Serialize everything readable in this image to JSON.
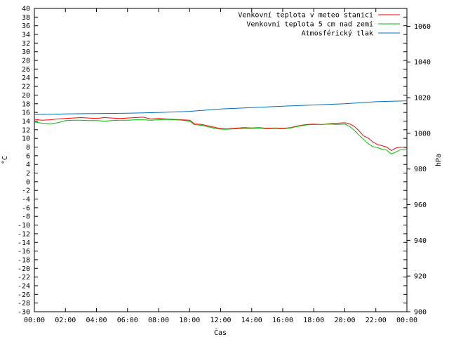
{
  "chart_data": {
    "type": "line",
    "xlabel": "Čas",
    "ylabel_left": "°C",
    "ylabel_right": "hPa",
    "x_ticks": [
      "00:00",
      "02:00",
      "04:00",
      "06:00",
      "08:00",
      "10:00",
      "12:00",
      "14:00",
      "16:00",
      "18:00",
      "20:00",
      "22:00",
      "00:00"
    ],
    "x_range": [
      0,
      24
    ],
    "y_left_range": [
      -30,
      40
    ],
    "y_left_ticks": [
      "40",
      "38",
      "36",
      "34",
      "32",
      "30",
      "28",
      "26",
      "24",
      "22",
      "20",
      "18",
      "16",
      "14",
      "12",
      "10",
      "8",
      "6",
      "4",
      "2",
      "0",
      "-2",
      "-4",
      "-6",
      "-8",
      "-10",
      "-12",
      "-14",
      "-16",
      "-18",
      "-20",
      "-22",
      "-24",
      "-26",
      "-28",
      "-30"
    ],
    "y_right_range": [
      900,
      1070
    ],
    "y_right_ticks": [
      "1060",
      "1040",
      "1020",
      "1000",
      "980",
      "960",
      "940",
      "920",
      "900"
    ],
    "grid": false,
    "legend_position": "top-right",
    "series": [
      {
        "name": "Venkovní teplota v meteo stanici",
        "color": "#ff0000",
        "axis": "left",
        "points": [
          [
            0,
            14.4
          ],
          [
            0.5,
            14.2
          ],
          [
            1,
            14.3
          ],
          [
            1.5,
            14.5
          ],
          [
            2,
            14.6
          ],
          [
            2.5,
            14.7
          ],
          [
            3,
            14.8
          ],
          [
            3.5,
            14.7
          ],
          [
            4,
            14.6
          ],
          [
            4.5,
            14.8
          ],
          [
            5,
            14.7
          ],
          [
            5.5,
            14.6
          ],
          [
            6,
            14.7
          ],
          [
            6.5,
            14.8
          ],
          [
            7,
            14.9
          ],
          [
            7.5,
            14.5
          ],
          [
            8,
            14.6
          ],
          [
            8.5,
            14.5
          ],
          [
            9,
            14.4
          ],
          [
            9.5,
            14.3
          ],
          [
            10,
            14.2
          ],
          [
            10.3,
            13.4
          ],
          [
            10.8,
            13.2
          ],
          [
            11.3,
            12.8
          ],
          [
            11.8,
            12.4
          ],
          [
            12.3,
            12.2
          ],
          [
            12.8,
            12.3
          ],
          [
            13.5,
            12.5
          ],
          [
            14,
            12.4
          ],
          [
            14.5,
            12.5
          ],
          [
            15,
            12.3
          ],
          [
            15.5,
            12.4
          ],
          [
            16,
            12.3
          ],
          [
            16.5,
            12.5
          ],
          [
            17,
            12.9
          ],
          [
            17.5,
            13.2
          ],
          [
            18,
            13.3
          ],
          [
            18.5,
            13.2
          ],
          [
            19,
            13.4
          ],
          [
            19.5,
            13.5
          ],
          [
            20,
            13.6
          ],
          [
            20.3,
            13.4
          ],
          [
            20.6,
            12.8
          ],
          [
            20.9,
            11.8
          ],
          [
            21.2,
            10.6
          ],
          [
            21.5,
            10.1
          ],
          [
            21.8,
            9.2
          ],
          [
            22.1,
            8.6
          ],
          [
            22.4,
            8.3
          ],
          [
            22.7,
            8.0
          ],
          [
            23,
            7.2
          ],
          [
            23.3,
            7.8
          ],
          [
            23.6,
            8.0
          ],
          [
            24,
            7.9
          ]
        ]
      },
      {
        "name": "Venkovní teplota 5 cm nad zemí",
        "color": "#00c000",
        "axis": "left",
        "points": [
          [
            0,
            13.8
          ],
          [
            0.5,
            13.5
          ],
          [
            1,
            13.4
          ],
          [
            1.5,
            13.6
          ],
          [
            2,
            14.1
          ],
          [
            2.5,
            14.2
          ],
          [
            3,
            14.2
          ],
          [
            3.5,
            14.1
          ],
          [
            4,
            14.1
          ],
          [
            4.5,
            14.0
          ],
          [
            5,
            14.1
          ],
          [
            5.5,
            14.2
          ],
          [
            6,
            14.2
          ],
          [
            6.5,
            14.3
          ],
          [
            7,
            14.3
          ],
          [
            7.5,
            14.2
          ],
          [
            8,
            14.3
          ],
          [
            8.5,
            14.4
          ],
          [
            9,
            14.3
          ],
          [
            9.5,
            14.2
          ],
          [
            10,
            14.0
          ],
          [
            10.3,
            13.2
          ],
          [
            10.8,
            13.0
          ],
          [
            11.3,
            12.6
          ],
          [
            11.8,
            12.2
          ],
          [
            12.3,
            12.1
          ],
          [
            12.8,
            12.2
          ],
          [
            13.5,
            12.3
          ],
          [
            14,
            12.3
          ],
          [
            14.5,
            12.4
          ],
          [
            15,
            12.2
          ],
          [
            15.5,
            12.3
          ],
          [
            16,
            12.2
          ],
          [
            16.5,
            12.4
          ],
          [
            17,
            12.8
          ],
          [
            17.5,
            13.1
          ],
          [
            18,
            13.2
          ],
          [
            18.5,
            13.2
          ],
          [
            19,
            13.3
          ],
          [
            19.5,
            13.2
          ],
          [
            20,
            13.3
          ],
          [
            20.3,
            12.8
          ],
          [
            20.6,
            11.9
          ],
          [
            20.9,
            10.8
          ],
          [
            21.2,
            9.8
          ],
          [
            21.5,
            8.8
          ],
          [
            21.8,
            8.1
          ],
          [
            22.1,
            7.9
          ],
          [
            22.4,
            7.5
          ],
          [
            22.7,
            7.3
          ],
          [
            23,
            6.4
          ],
          [
            23.3,
            6.9
          ],
          [
            23.6,
            7.4
          ],
          [
            24,
            7.4
          ]
        ]
      },
      {
        "name": "Atmosférický tlak",
        "color": "#0070c0",
        "axis": "right",
        "points": [
          [
            0,
            1010.5
          ],
          [
            2,
            1010.9
          ],
          [
            4,
            1011.1
          ],
          [
            6,
            1011.3
          ],
          [
            8,
            1011.7
          ],
          [
            10,
            1012.3
          ],
          [
            12,
            1013.6
          ],
          [
            14,
            1014.4
          ],
          [
            16,
            1015.2
          ],
          [
            18,
            1015.9
          ],
          [
            20,
            1016.6
          ],
          [
            22,
            1017.7
          ],
          [
            24,
            1018.2
          ]
        ]
      }
    ]
  }
}
